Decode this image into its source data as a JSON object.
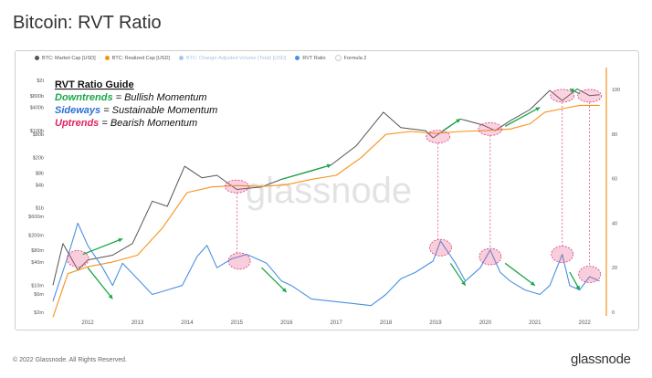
{
  "title": "Bitcoin: RVT Ratio",
  "footer": {
    "copyright": "© 2022 Glassnode. All Rights Reserved.",
    "logo": "glassnode"
  },
  "watermark": "glassnode",
  "legend": [
    {
      "label": "BTC: Market Cap [USD]",
      "color": "#555555",
      "muted": false
    },
    {
      "label": "BTC: Realized Cap [USD]",
      "color": "#f7931a",
      "muted": false
    },
    {
      "label": "BTC: Change-Adjusted Volume (Total) [USD]",
      "color": "#a9c6ef",
      "muted": true
    },
    {
      "label": "RVT Ratio",
      "color": "#4a90e2",
      "muted": false
    },
    {
      "label": "Formula 2",
      "color": "#ffffff",
      "muted": false
    }
  ],
  "guide": {
    "title": "RVT Ratio Guide",
    "lines": [
      {
        "key": "Downtrends",
        "rest": " = Bullish Momentum",
        "color": "#1aa64a"
      },
      {
        "key": "Sideways",
        "rest": " = Sustainable Momentum",
        "color": "#2b6fd6"
      },
      {
        "key": "Uptrends",
        "rest": " = Bearish Momentum",
        "color": "#e0245e"
      }
    ]
  },
  "chart_data": {
    "type": "line",
    "x_ticks": [
      "2012",
      "2013",
      "2014",
      "2015",
      "2016",
      "2017",
      "2018",
      "2019",
      "2020",
      "2021",
      "2022"
    ],
    "y_left_ticks": [
      "$2t",
      "$800b",
      "$400b",
      "$100b",
      "$80b",
      "$20b",
      "$8b",
      "$4b",
      "$1b",
      "$600m",
      "$200m",
      "$80m",
      "$40m",
      "$10m",
      "$6m",
      "$2m"
    ],
    "y_right_ticks": [
      "100",
      "80",
      "60",
      "40",
      "20",
      "0"
    ],
    "y_left_scale": "log",
    "y_right_range": [
      0,
      100
    ],
    "series": [
      {
        "name": "BTC: Market Cap [USD]",
        "color": "#555555",
        "axis": "left",
        "points": [
          [
            2011.3,
            10000000.0
          ],
          [
            2011.5,
            120000000.0
          ],
          [
            2011.8,
            25000000.0
          ],
          [
            2012.0,
            45000000.0
          ],
          [
            2012.5,
            60000000.0
          ],
          [
            2012.9,
            120000000.0
          ],
          [
            2013.3,
            1500000000.0
          ],
          [
            2013.6,
            1100000000.0
          ],
          [
            2013.95,
            12000000000.0
          ],
          [
            2014.3,
            6000000000.0
          ],
          [
            2014.6,
            7000000000.0
          ],
          [
            2015.0,
            3000000000.0
          ],
          [
            2015.5,
            3500000000.0
          ],
          [
            2015.9,
            5500000000.0
          ],
          [
            2016.5,
            9000000000.0
          ],
          [
            2016.9,
            13000000000.0
          ],
          [
            2017.4,
            40000000000.0
          ],
          [
            2017.95,
            300000000000.0
          ],
          [
            2018.3,
            120000000000.0
          ],
          [
            2018.8,
            100000000000.0
          ],
          [
            2018.95,
            65000000000.0
          ],
          [
            2019.5,
            200000000000.0
          ],
          [
            2019.95,
            140000000000.0
          ],
          [
            2020.2,
            100000000000.0
          ],
          [
            2020.5,
            180000000000.0
          ],
          [
            2020.9,
            350000000000.0
          ],
          [
            2021.3,
            1100000000000.0
          ],
          [
            2021.55,
            600000000000.0
          ],
          [
            2021.85,
            1200000000000.0
          ],
          [
            2022.1,
            800000000000.0
          ],
          [
            2022.3,
            850000000000.0
          ]
        ]
      },
      {
        "name": "BTC: Realized Cap [USD]",
        "color": "#f7931a",
        "axis": "left",
        "points": [
          [
            2011.3,
            1500000.0
          ],
          [
            2011.6,
            20000000.0
          ],
          [
            2012.0,
            30000000.0
          ],
          [
            2012.5,
            40000000.0
          ],
          [
            2013.0,
            60000000.0
          ],
          [
            2013.5,
            300000000.0
          ],
          [
            2014.0,
            2500000000.0
          ],
          [
            2014.5,
            3500000000.0
          ],
          [
            2015.0,
            3800000000.0
          ],
          [
            2015.5,
            3600000000.0
          ],
          [
            2016.0,
            4000000000.0
          ],
          [
            2016.5,
            5500000000.0
          ],
          [
            2017.0,
            7000000000.0
          ],
          [
            2017.5,
            20000000000.0
          ],
          [
            2018.0,
            80000000000.0
          ],
          [
            2018.5,
            95000000000.0
          ],
          [
            2019.0,
            85000000000.0
          ],
          [
            2019.5,
            95000000000.0
          ],
          [
            2020.0,
            100000000000.0
          ],
          [
            2020.5,
            110000000000.0
          ],
          [
            2020.9,
            150000000000.0
          ],
          [
            2021.2,
            300000000000.0
          ],
          [
            2021.6,
            380000000000.0
          ],
          [
            2021.9,
            450000000000.0
          ],
          [
            2022.3,
            450000000000.0
          ]
        ]
      },
      {
        "name": "RVT Ratio",
        "color": "#4a90e2",
        "axis": "right",
        "points": [
          [
            2011.3,
            5
          ],
          [
            2011.6,
            25
          ],
          [
            2011.8,
            40
          ],
          [
            2012.0,
            30
          ],
          [
            2012.3,
            20
          ],
          [
            2012.5,
            12
          ],
          [
            2012.7,
            22
          ],
          [
            2013.0,
            15
          ],
          [
            2013.3,
            8
          ],
          [
            2013.6,
            10
          ],
          [
            2013.9,
            12
          ],
          [
            2014.2,
            25
          ],
          [
            2014.4,
            30
          ],
          [
            2014.6,
            20
          ],
          [
            2014.9,
            24
          ],
          [
            2015.2,
            26
          ],
          [
            2015.6,
            22
          ],
          [
            2015.9,
            14
          ],
          [
            2016.1,
            12
          ],
          [
            2016.5,
            6
          ],
          [
            2016.9,
            5
          ],
          [
            2017.3,
            4
          ],
          [
            2017.7,
            3
          ],
          [
            2018.0,
            8
          ],
          [
            2018.3,
            15
          ],
          [
            2018.6,
            18
          ],
          [
            2018.95,
            23
          ],
          [
            2019.1,
            32
          ],
          [
            2019.4,
            22
          ],
          [
            2019.6,
            14
          ],
          [
            2019.9,
            20
          ],
          [
            2020.1,
            28
          ],
          [
            2020.3,
            18
          ],
          [
            2020.5,
            14
          ],
          [
            2020.8,
            10
          ],
          [
            2021.1,
            8
          ],
          [
            2021.3,
            12
          ],
          [
            2021.55,
            26
          ],
          [
            2021.7,
            12
          ],
          [
            2021.9,
            10
          ],
          [
            2022.1,
            16
          ],
          [
            2022.3,
            14
          ]
        ]
      }
    ],
    "annotations": [
      {
        "shape": "ellipse",
        "x": 2011.8,
        "y_right": 24,
        "label": ""
      },
      {
        "shape": "ellipse",
        "x": 2015.05,
        "y_right": 23,
        "label": ""
      },
      {
        "shape": "ellipse",
        "x": 2019.1,
        "y_right": 29,
        "label": ""
      },
      {
        "shape": "ellipse",
        "x": 2020.1,
        "y_right": 25,
        "label": ""
      },
      {
        "shape": "ellipse",
        "x": 2021.55,
        "y_right": 26,
        "label": ""
      },
      {
        "shape": "ellipse",
        "x": 2022.1,
        "y_right": 17,
        "label": ""
      },
      {
        "shape": "ellipse",
        "x": 2015.0,
        "y_left": 3600000000.0,
        "label": ""
      },
      {
        "shape": "ellipse",
        "x": 2019.05,
        "y_left": 70000000000.0,
        "label": ""
      },
      {
        "shape": "ellipse",
        "x": 2020.1,
        "y_left": 110000000000.0,
        "label": ""
      },
      {
        "shape": "ellipse",
        "x": 2021.55,
        "y_left": 800000000000.0,
        "label": ""
      },
      {
        "shape": "ellipse",
        "x": 2022.1,
        "y_left": 800000000000.0,
        "label": ""
      }
    ],
    "grid": false,
    "legend_position": "top-left"
  }
}
